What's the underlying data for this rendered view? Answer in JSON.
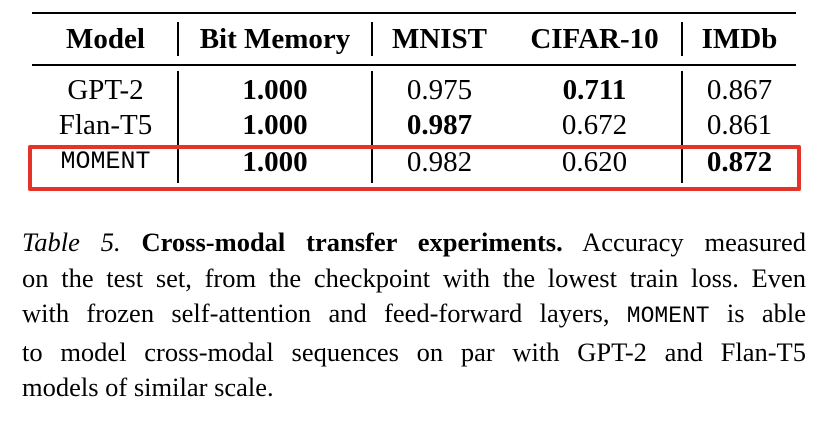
{
  "table": {
    "headers": [
      "Model",
      "Bit Memory",
      "MNIST",
      "CIFAR-10",
      "IMDb"
    ],
    "rows": [
      {
        "model": "GPT-2",
        "values": [
          "1.000",
          "0.975",
          "0.711",
          "0.867"
        ],
        "bold": [
          true,
          false,
          true,
          false
        ]
      },
      {
        "model": "Flan-T5",
        "values": [
          "1.000",
          "0.987",
          "0.672",
          "0.861"
        ],
        "bold": [
          true,
          true,
          false,
          false
        ]
      },
      {
        "model": "MOMENT",
        "values": [
          "1.000",
          "0.982",
          "0.620",
          "0.872"
        ],
        "bold": [
          true,
          false,
          false,
          true
        ]
      }
    ],
    "highlighted_row": "MOMENT",
    "highlight_color": "#e63329"
  },
  "caption": {
    "label": "Table 5.",
    "title": "Cross-modal transfer experiments.",
    "line1_rest": "Accuracy measured",
    "line2": "on the test set, from the checkpoint with the lowest train loss. Even",
    "line3_pre": "with frozen self-attention and feed-forward layers,",
    "line3_model": "MOMENT",
    "line3_post": "is able",
    "line4": "to model cross-modal sequences on par with GPT-2 and Flan-T5",
    "line5": "models of similar scale."
  }
}
